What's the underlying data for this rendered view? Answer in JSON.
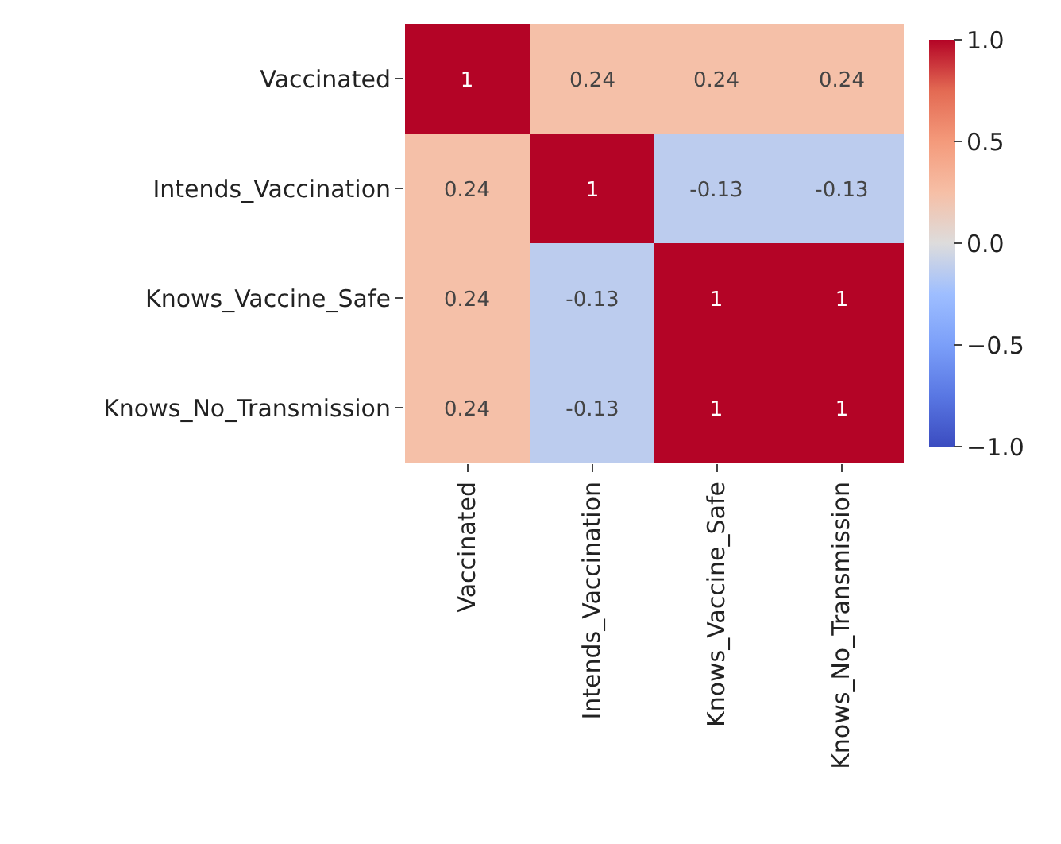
{
  "chart_data": {
    "type": "heatmap",
    "categories": [
      "Vaccinated",
      "Intends_Vaccination",
      "Knows_Vaccine_Safe",
      "Knows_No_Transmission"
    ],
    "y_categories": [
      "Vaccinated",
      "Intends_Vaccination",
      "Knows_Vaccine_Safe",
      "Knows_No_Transmission"
    ],
    "cells": [
      [
        1,
        0.24,
        0.24,
        0.24
      ],
      [
        0.24,
        1,
        -0.13,
        -0.13
      ],
      [
        0.24,
        -0.13,
        1,
        1
      ],
      [
        0.24,
        -0.13,
        1,
        1
      ]
    ],
    "data_labels": true,
    "clim": [
      -1,
      1
    ],
    "cticks": [
      {
        "value": 1,
        "label": "1.0"
      },
      {
        "value": 0.5,
        "label": "0.5"
      },
      {
        "value": 0,
        "label": "0.0"
      },
      {
        "value": -0.5,
        "label": "−0.5"
      },
      {
        "value": -1,
        "label": "−1.0"
      }
    ]
  }
}
